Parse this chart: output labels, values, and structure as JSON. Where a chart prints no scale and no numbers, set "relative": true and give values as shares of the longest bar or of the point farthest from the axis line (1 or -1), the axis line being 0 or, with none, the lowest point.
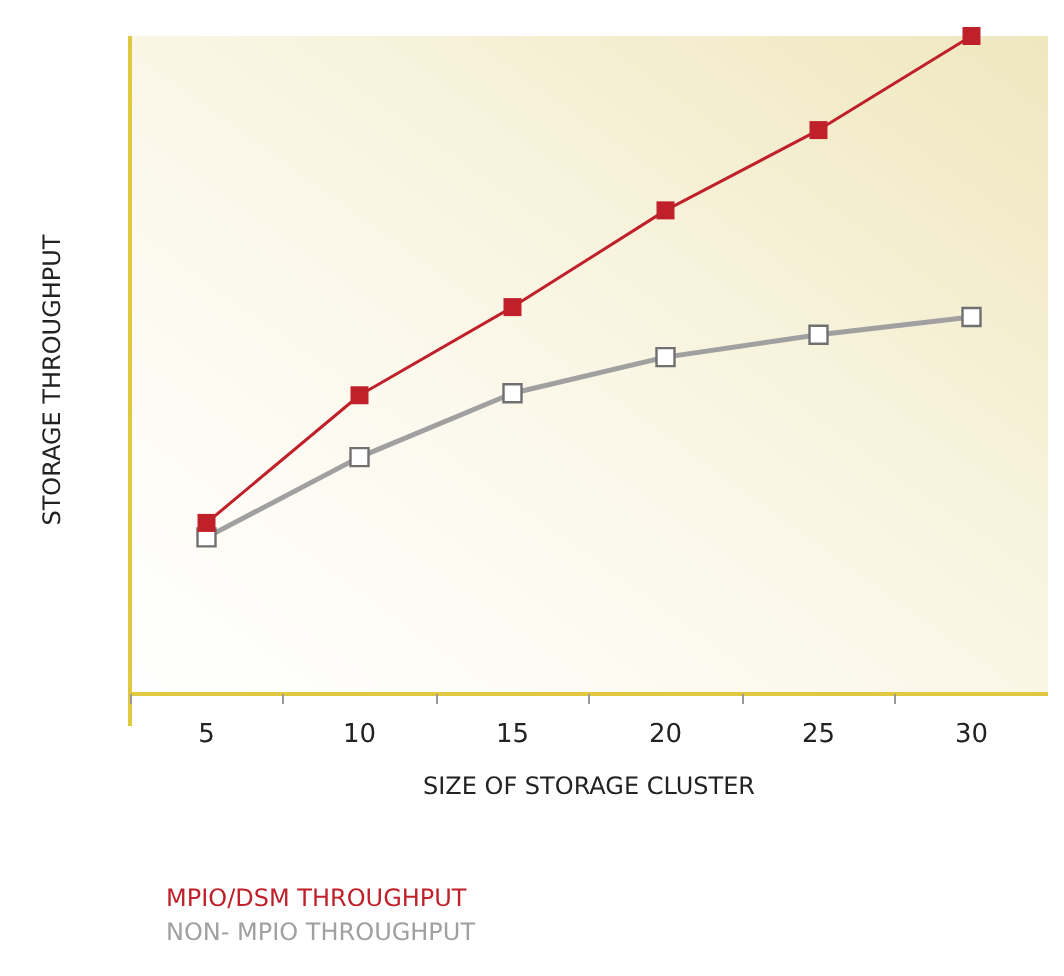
{
  "chart_data": {
    "type": "line",
    "relative": true,
    "xlabel": "SIZE OF STORAGE CLUSTER",
    "ylabel": "STORAGE THROUGHPUT",
    "categories": [
      "5",
      "10",
      "15",
      "20",
      "25",
      "30"
    ],
    "series": [
      {
        "name": "MPIO/DSM THROUGHPUT",
        "color": "#c0202a",
        "values": [
          0.26,
          0.454,
          0.588,
          0.735,
          0.857,
          1
        ]
      },
      {
        "name": "NON- MPIO THROUGHPUT",
        "color": "#a0a0a0",
        "values": [
          0.238,
          0.36,
          0.457,
          0.512,
          0.546,
          0.573
        ]
      }
    ],
    "marker": "square",
    "legend": "bottom left",
    "grid": false
  }
}
